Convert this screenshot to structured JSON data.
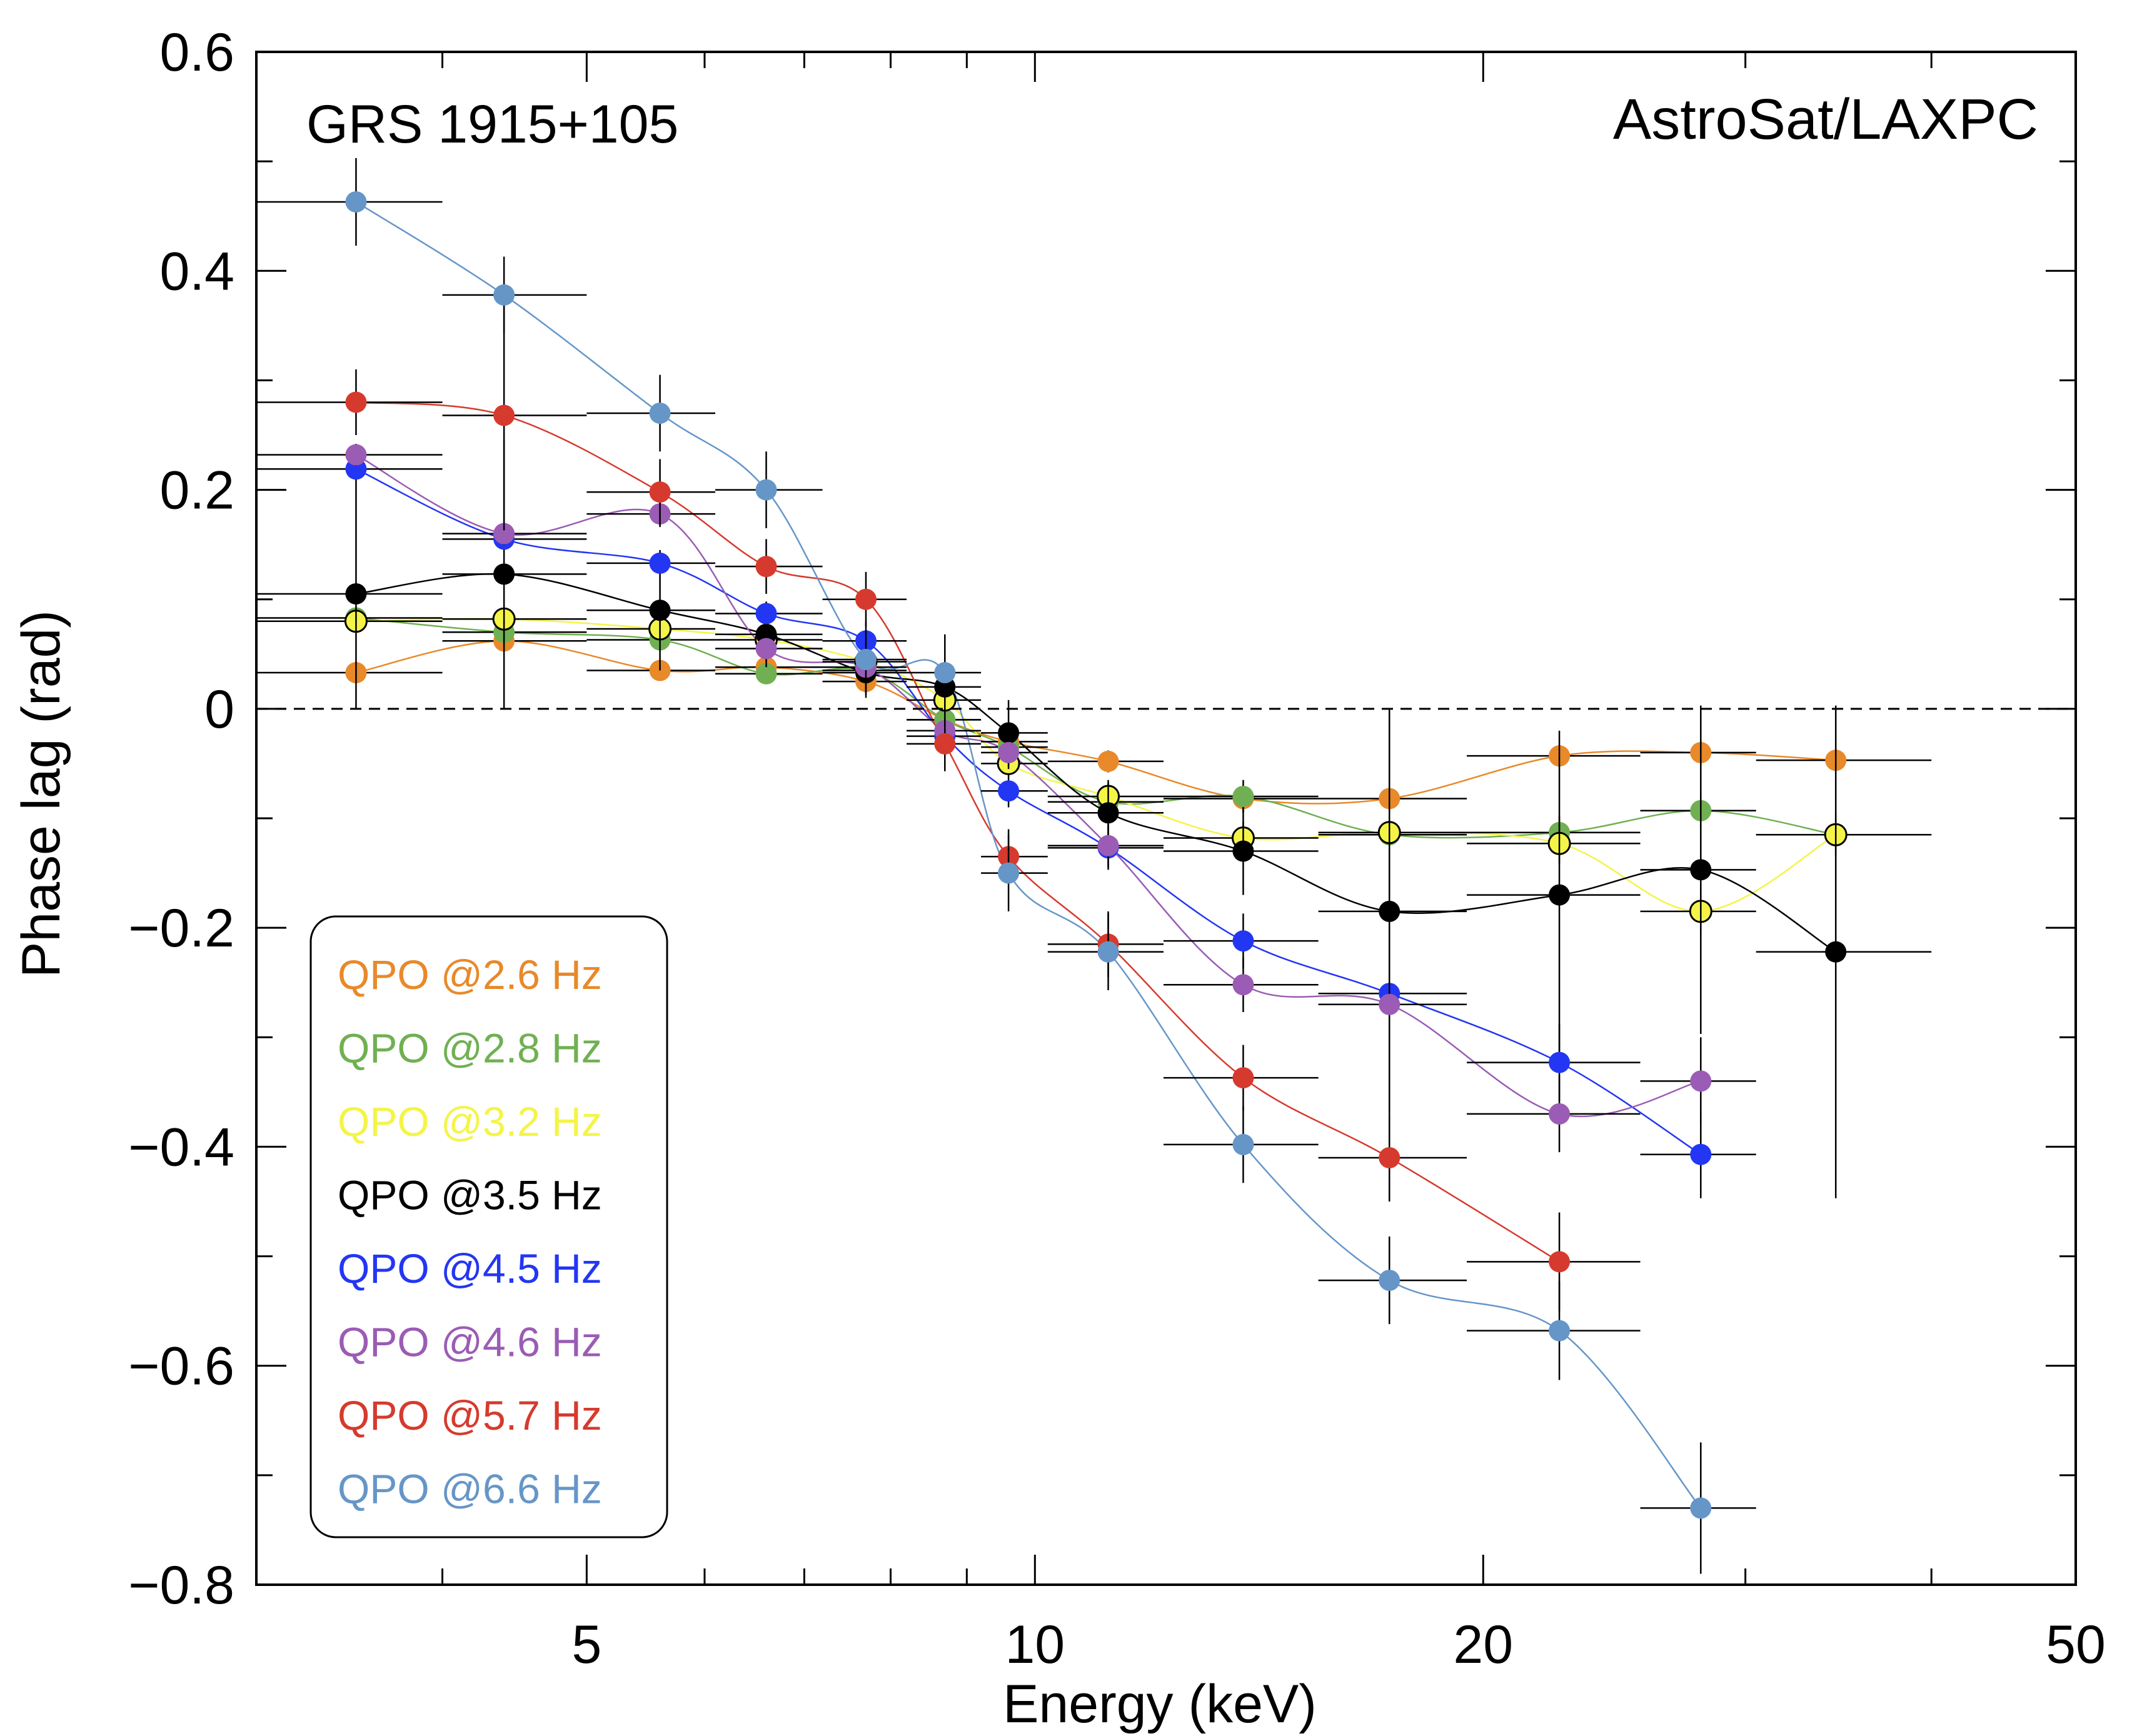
{
  "chart_data": {
    "type": "scatter",
    "title": "",
    "xlabel": "Energy (keV)",
    "ylabel": "Phase lag (rad)",
    "xscale": "log",
    "xlim": [
      3.0,
      50
    ],
    "ylim": [
      -0.8,
      0.6
    ],
    "x_ticks": [
      {
        "v": 5,
        "label": "5"
      },
      {
        "v": 10,
        "label": "10"
      },
      {
        "v": 20,
        "label": "20"
      },
      {
        "v": 50,
        "label": "50"
      }
    ],
    "y_ticks": [
      {
        "v": 0.6,
        "label": "0.6"
      },
      {
        "v": 0.4,
        "label": "0.4"
      },
      {
        "v": 0.2,
        "label": "0.2"
      },
      {
        "v": 0,
        "label": "0"
      },
      {
        "v": -0.2,
        "label": "−0.2"
      },
      {
        "v": -0.4,
        "label": "−0.4"
      },
      {
        "v": -0.6,
        "label": "−0.6"
      },
      {
        "v": -0.8,
        "label": "−0.8"
      }
    ],
    "annotations": {
      "source": "GRS 1915+105",
      "instrument": "AstroSat/LAXPC"
    },
    "reference_line": {
      "y": 0,
      "style": "dashed"
    },
    "legend_position": "bottom-left",
    "energy_bins": [
      {
        "e": 3.5,
        "lo": 3.0,
        "hi": 4.0
      },
      {
        "e": 4.4,
        "lo": 4.0,
        "hi": 5.0
      },
      {
        "e": 5.6,
        "lo": 5.0,
        "hi": 6.1
      },
      {
        "e": 6.6,
        "lo": 6.1,
        "hi": 7.2
      },
      {
        "e": 7.7,
        "lo": 7.2,
        "hi": 8.2
      },
      {
        "e": 8.7,
        "lo": 8.2,
        "hi": 9.2
      },
      {
        "e": 9.6,
        "lo": 9.2,
        "hi": 10.2
      },
      {
        "e": 11.2,
        "lo": 10.2,
        "hi": 12.2
      },
      {
        "e": 13.8,
        "lo": 12.2,
        "hi": 15.5
      },
      {
        "e": 17.3,
        "lo": 15.5,
        "hi": 19.5
      },
      {
        "e": 22.5,
        "lo": 19.5,
        "hi": 25.5
      },
      {
        "e": 28.0,
        "lo": 25.5,
        "hi": 30.5
      },
      {
        "e": 34.5,
        "lo": 30.5,
        "hi": 40.0
      }
    ],
    "series": [
      {
        "name": "QPO @2.6 Hz",
        "color": "#e8892a",
        "y": [
          0.033,
          0.062,
          0.035,
          0.038,
          0.025,
          -0.01,
          -0.03,
          -0.048,
          -0.082,
          -0.082,
          -0.043,
          -0.04,
          -0.047
        ],
        "err": [
          0.005,
          0.005,
          0.005,
          0.005,
          0.005,
          0.006,
          0.008,
          0.01,
          0.012,
          0.015,
          0.01,
          0.012,
          0.01
        ]
      },
      {
        "name": "QPO @2.8 Hz",
        "color": "#70b052",
        "y": [
          0.083,
          0.07,
          0.063,
          0.032,
          0.035,
          -0.01,
          -0.035,
          -0.085,
          -0.08,
          -0.115,
          -0.113,
          -0.093,
          -0.115
        ],
        "err": [
          0.006,
          0.006,
          0.006,
          0.006,
          0.006,
          0.008,
          0.01,
          0.012,
          0.015,
          0.015,
          0.015,
          0.015,
          0.015
        ]
      },
      {
        "name": "QPO @3.2 Hz",
        "color": "#f4f448",
        "edge": "#000000",
        "y": [
          0.08,
          0.082,
          0.073,
          0.063,
          0.043,
          0.008,
          -0.05,
          -0.08,
          -0.118,
          -0.113,
          -0.123,
          -0.185,
          -0.115
        ],
        "err": [
          0.006,
          0.006,
          0.006,
          0.006,
          0.006,
          0.008,
          0.01,
          0.012,
          0.015,
          0.015,
          0.018,
          0.02,
          0.02
        ]
      },
      {
        "name": "QPO @3.5 Hz",
        "color": "#000000",
        "y": [
          0.105,
          0.123,
          0.09,
          0.068,
          0.033,
          0.02,
          -0.022,
          -0.095,
          -0.13,
          -0.185,
          -0.17,
          -0.147,
          -0.222
        ],
        "err": [
          0.105,
          0.123,
          0.055,
          0.03,
          0.02,
          0.03,
          0.03,
          0.03,
          0.04,
          0.185,
          0.15,
          0.15,
          0.225
        ]
      },
      {
        "name": "QPO @4.5 Hz",
        "color": "#2336f3",
        "y": [
          0.219,
          0.155,
          0.133,
          0.087,
          0.062,
          -0.025,
          -0.075,
          -0.127,
          -0.212,
          -0.26,
          -0.323,
          -0.407
        ],
        "err": [
          0.01,
          0.01,
          0.01,
          0.01,
          0.01,
          0.012,
          0.015,
          0.02,
          0.025,
          0.03,
          0.035,
          0.04
        ]
      },
      {
        "name": "QPO @4.6 Hz",
        "color": "#9a5cb4",
        "y": [
          0.232,
          0.16,
          0.178,
          0.055,
          0.038,
          -0.02,
          -0.04,
          -0.125,
          -0.252,
          -0.27,
          -0.37,
          -0.34
        ],
        "err": [
          0.01,
          0.01,
          0.012,
          0.012,
          0.012,
          0.012,
          0.015,
          0.02,
          0.025,
          0.03,
          0.035,
          0.04
        ]
      },
      {
        "name": "QPO @5.7 Hz",
        "color": "#d63a2e",
        "y": [
          0.28,
          0.268,
          0.198,
          0.13,
          0.1,
          -0.032,
          -0.135,
          -0.215,
          -0.337,
          -0.41,
          -0.505
        ],
        "err": [
          0.03,
          0.105,
          0.03,
          0.025,
          0.025,
          0.025,
          0.025,
          0.03,
          0.03,
          0.04,
          0.045
        ]
      },
      {
        "name": "QPO @6.6 Hz",
        "color": "#6696c8",
        "y": [
          0.463,
          0.378,
          0.27,
          0.2,
          0.045,
          0.033,
          -0.15,
          -0.222,
          -0.398,
          -0.522,
          -0.568,
          -0.73
        ],
        "err": [
          0.04,
          0.035,
          0.035,
          0.035,
          0.035,
          0.035,
          0.035,
          0.035,
          0.035,
          0.04,
          0.045,
          0.06
        ]
      }
    ]
  }
}
